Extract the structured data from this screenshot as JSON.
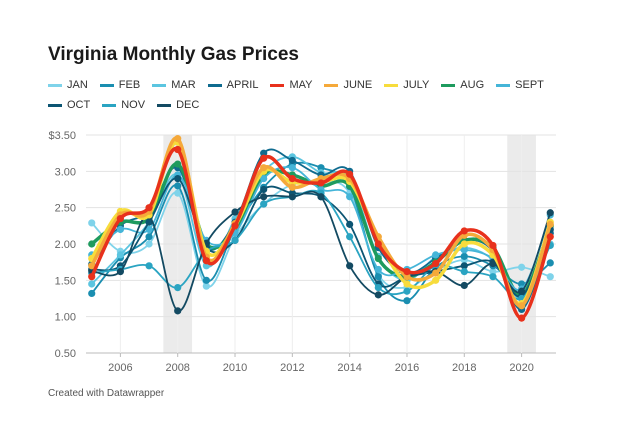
{
  "title": "Virginia Monthly Gas Prices",
  "footer": "Created with Datawrapper",
  "chart_data": {
    "type": "line",
    "title": "Virginia Monthly Gas Prices",
    "xlabel": "",
    "ylabel": "",
    "x": [
      2005,
      2006,
      2007,
      2008,
      2009,
      2010,
      2011,
      2012,
      2013,
      2014,
      2015,
      2016,
      2017,
      2018,
      2019,
      2020,
      2021
    ],
    "xlim": [
      2004.8,
      2021.2
    ],
    "ylim": [
      0.5,
      3.5
    ],
    "y_ticks": [
      "$3.50",
      "3.00",
      "2.50",
      "2.00",
      "1.50",
      "1.00",
      "0.50"
    ],
    "x_ticks": [
      "2006",
      "2008",
      "2010",
      "2012",
      "2014",
      "2016",
      "2018",
      "2020"
    ],
    "grid": true,
    "legend_position": "top",
    "shaded_periods": [
      [
        2007.5,
        2008.5
      ],
      [
        2019.5,
        2020.5
      ]
    ],
    "series": [
      {
        "name": "JAN",
        "color": "#7fd3ea",
        "values": [
          2.29,
          1.9,
          2.0,
          2.7,
          1.42,
          2.1,
          2.55,
          2.82,
          2.86,
          2.7,
          1.58,
          1.4,
          1.63,
          1.78,
          1.62,
          1.68,
          1.55
        ]
      },
      {
        "name": "FEB",
        "color": "#1a8eb0",
        "values": [
          1.32,
          1.81,
          2.1,
          2.8,
          1.5,
          2.21,
          2.78,
          3.1,
          3.05,
          2.79,
          1.55,
          1.22,
          1.68,
          1.83,
          1.7,
          1.45,
          1.74
        ]
      },
      {
        "name": "MAR",
        "color": "#5bc5e0",
        "values": [
          1.45,
          1.85,
          2.3,
          2.95,
          1.7,
          2.35,
          3.0,
          3.2,
          2.98,
          2.9,
          1.83,
          1.5,
          1.82,
          1.95,
          1.78,
          1.25,
          2.0
        ]
      },
      {
        "name": "APRIL",
        "color": "#0f6b8f",
        "values": [
          1.72,
          2.25,
          2.45,
          3.05,
          1.95,
          2.3,
          3.25,
          3.15,
          2.95,
          3.0,
          1.95,
          1.6,
          1.8,
          2.05,
          1.9,
          1.1,
          2.15
        ]
      },
      {
        "name": "MAY",
        "color": "#e8311c",
        "values": [
          1.55,
          2.35,
          2.5,
          3.3,
          1.77,
          2.25,
          3.18,
          2.9,
          2.84,
          2.96,
          2.0,
          1.62,
          1.73,
          2.18,
          1.98,
          0.98,
          2.1
        ]
      },
      {
        "name": "JUNE",
        "color": "#f5a93a",
        "values": [
          1.7,
          2.4,
          2.45,
          3.45,
          1.82,
          2.28,
          3.05,
          2.78,
          2.9,
          2.9,
          2.1,
          1.55,
          1.6,
          2.12,
          1.92,
          1.15,
          2.27
        ]
      },
      {
        "name": "JULY",
        "color": "#f7dc3c",
        "values": [
          1.8,
          2.45,
          2.4,
          3.4,
          1.9,
          2.25,
          3.0,
          2.85,
          2.85,
          2.86,
          2.05,
          1.45,
          1.5,
          2.0,
          1.85,
          1.18,
          2.3
        ]
      },
      {
        "name": "AUG",
        "color": "#1e9b5e",
        "values": [
          2.0,
          2.3,
          2.35,
          3.1,
          2.0,
          2.2,
          2.95,
          2.95,
          2.8,
          2.8,
          1.8,
          1.55,
          1.75,
          2.05,
          1.95,
          1.3,
          2.25
        ]
      },
      {
        "name": "SEPT",
        "color": "#45b5d8",
        "values": [
          1.85,
          2.2,
          2.2,
          2.95,
          2.05,
          2.15,
          2.9,
          3.05,
          2.75,
          2.65,
          1.65,
          1.65,
          1.85,
          1.92,
          1.8,
          1.38,
          2.4
        ]
      },
      {
        "name": "OCT",
        "color": "#0c5573",
        "values": [
          1.65,
          1.7,
          2.3,
          2.9,
          1.95,
          2.05,
          2.75,
          2.7,
          2.65,
          2.27,
          1.45,
          1.55,
          1.62,
          1.7,
          1.75,
          1.28,
          2.2
        ]
      },
      {
        "name": "NOV",
        "color": "#2aa4c2",
        "values": [
          1.6,
          1.65,
          1.7,
          1.4,
          1.9,
          2.05,
          2.55,
          2.65,
          2.7,
          2.1,
          1.4,
          1.35,
          1.7,
          1.62,
          1.55,
          1.25,
          1.98
        ]
      },
      {
        "name": "DEC",
        "color": "#134a62",
        "values": [
          1.63,
          1.62,
          2.38,
          1.08,
          2.01,
          2.44,
          2.65,
          2.65,
          2.65,
          1.7,
          1.3,
          1.55,
          1.62,
          1.43,
          1.73,
          1.35,
          2.43
        ]
      }
    ]
  }
}
